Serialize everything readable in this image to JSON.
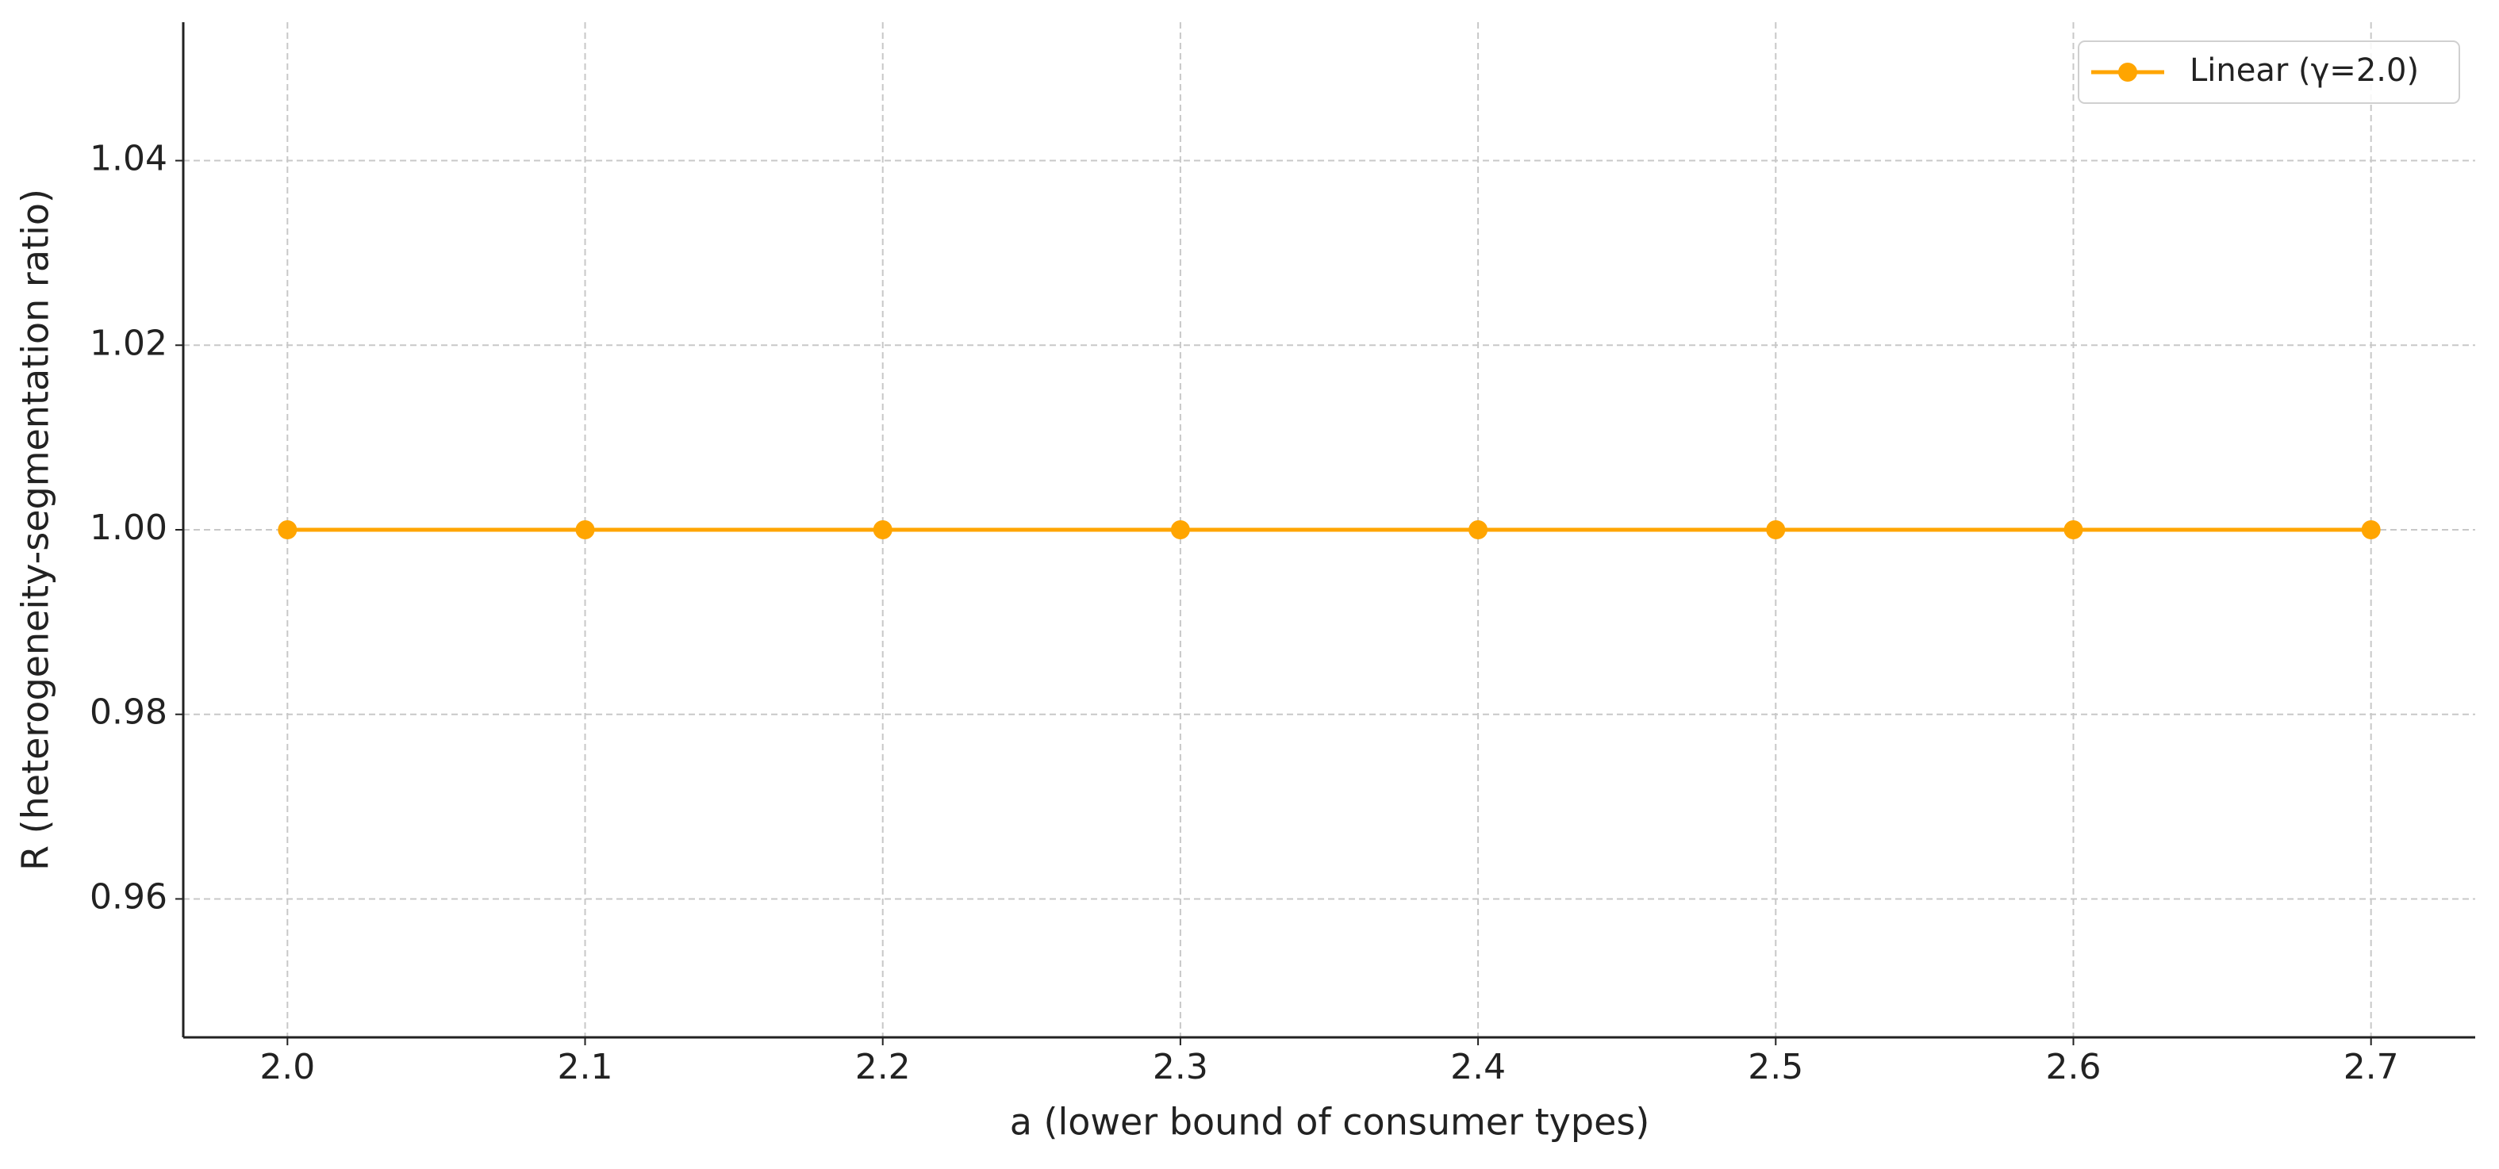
{
  "chart_data": {
    "type": "line",
    "xlabel": "a (lower bound of consumer types)",
    "ylabel": "R (heterogeneity-segmentation ratio)",
    "x": [
      2.0,
      2.1,
      2.2,
      2.3,
      2.4,
      2.5,
      2.6,
      2.7
    ],
    "series": [
      {
        "name": "Linear (γ=2.0)",
        "color": "#ffa500",
        "values": [
          1.0,
          1.0,
          1.0,
          1.0,
          1.0,
          1.0,
          1.0,
          1.0
        ]
      }
    ],
    "xlim": [
      1.965,
      2.735
    ],
    "ylim": [
      0.945,
      1.055
    ],
    "xticks": [
      {
        "value": 2.0,
        "label": "2.0"
      },
      2.1,
      2.2,
      2.3,
      2.4,
      2.5,
      2.6,
      2.7
    ],
    "yticks": [
      0.96,
      0.98,
      {
        "value": 1.0,
        "label": "1.00"
      },
      1.02,
      1.04
    ],
    "grid": true,
    "legend": "upper right"
  }
}
